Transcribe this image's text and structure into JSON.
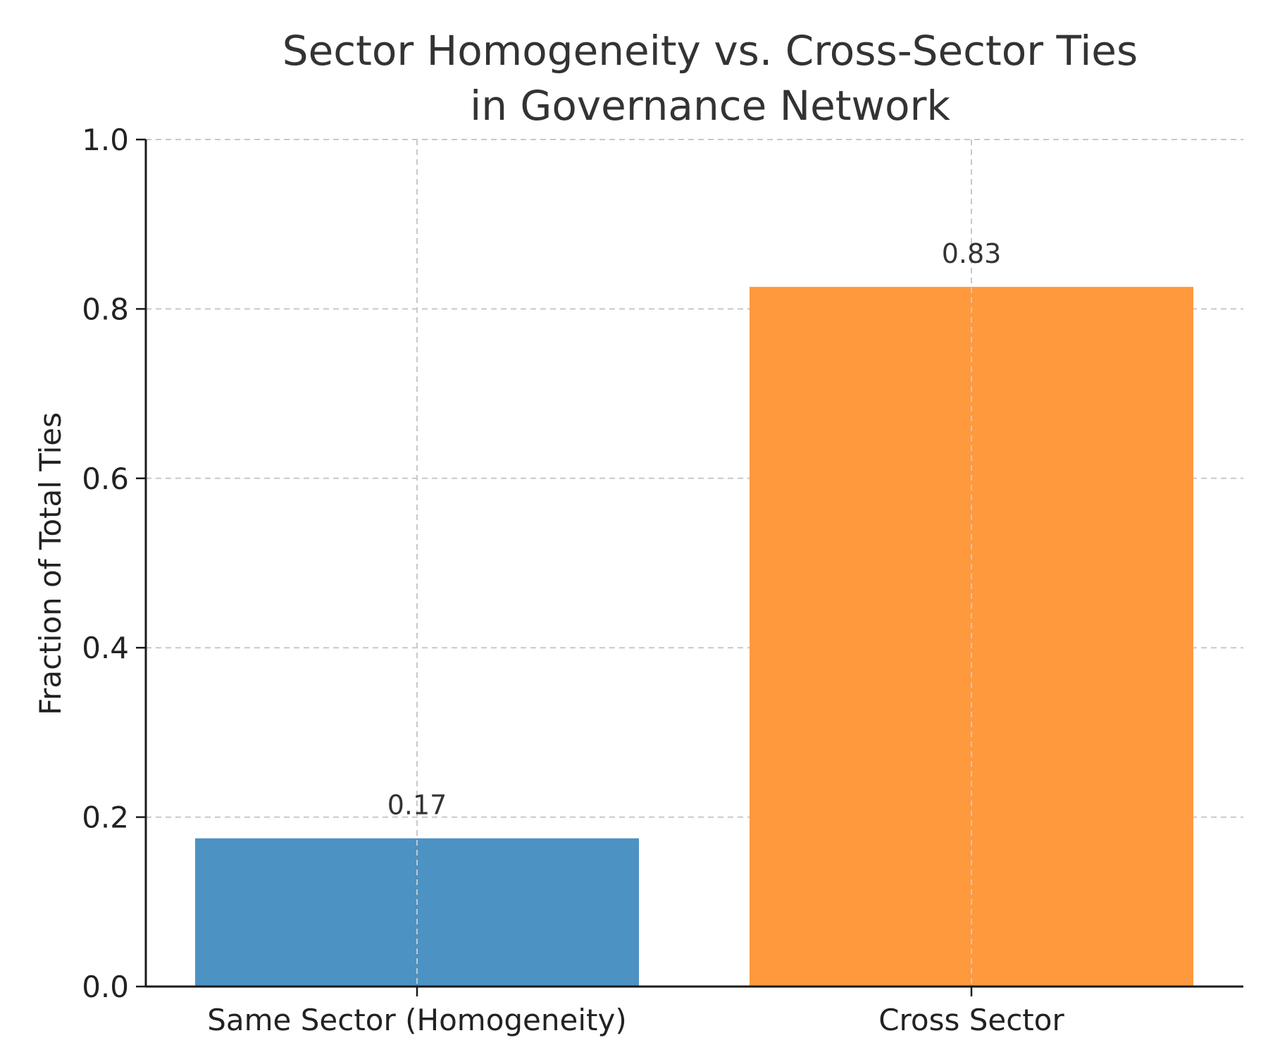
{
  "chart_data": {
    "type": "bar",
    "title_lines": [
      "Sector Homogeneity vs. Cross-Sector Ties",
      "in Governance Network"
    ],
    "xlabel": "",
    "ylabel": "Fraction of Total Ties",
    "categories": [
      "Same Sector (Homogeneity)",
      "Cross Sector"
    ],
    "values": [
      0.175,
      0.826
    ],
    "value_labels": [
      "0.17",
      "0.83"
    ],
    "colors": [
      "#4c92c3",
      "#ff993e"
    ],
    "ylim": [
      0,
      1.0
    ],
    "yticks": [
      0.0,
      0.2,
      0.4,
      0.6,
      0.8,
      1.0
    ],
    "ytick_labels": [
      "0.0",
      "0.2",
      "0.4",
      "0.6",
      "0.8",
      "1.0"
    ],
    "grid": true,
    "legend": "none"
  }
}
